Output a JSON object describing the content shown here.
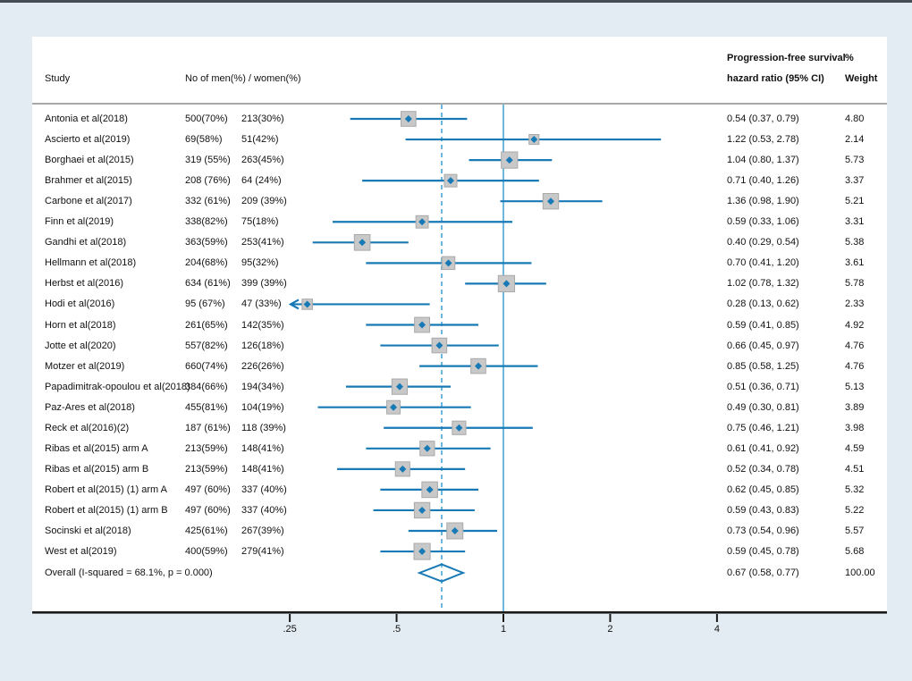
{
  "header": {
    "col_study": "Study",
    "col_counts": "No of men(%) / women(%)",
    "col_hr_line1": "Progression-free survival",
    "col_hr_line2": "hazard ratio (95% CI)",
    "col_weight_line1": "%",
    "col_weight_line2": "Weight"
  },
  "colors": {
    "accent_blue": "#1779b5",
    "ref_line_blue": "#4aa5d6",
    "box_fill": "#c8c8c8",
    "box_stroke": "#a9a9a9",
    "axis_black": "#1a1a1a",
    "header_rule_gray": "#a8a8a8",
    "outer_bg": "#e3ecf2",
    "panel_bg": "#ffffff",
    "text": "#111111"
  },
  "chart_data": {
    "type": "scatter",
    "subtype": "forest_plot",
    "title": "",
    "x_axis": {
      "scale": "log",
      "ticks": [
        0.25,
        0.5,
        1,
        2,
        4
      ],
      "tick_labels": [
        ".25",
        ".5",
        "1",
        "2",
        "4"
      ],
      "reference_line": 1,
      "overall_dashed_line": 0.67,
      "legend_position": "none",
      "grid": false
    },
    "studies": [
      {
        "label": "Antonia et al(2018)",
        "men": "500(70%)",
        "women": "213(30%)",
        "hr": 0.54,
        "lo": 0.37,
        "hi": 0.79,
        "hr_text": "0.54 (0.37, 0.79)",
        "weight": 4.8,
        "weight_text": "4.80"
      },
      {
        "label": "Ascierto et al(2019)",
        "men": "69(58%)",
        "women": "51(42%)",
        "hr": 1.22,
        "lo": 0.53,
        "hi": 2.78,
        "hr_text": "1.22 (0.53, 2.78)",
        "weight": 2.14,
        "weight_text": "2.14"
      },
      {
        "label": "Borghaei et al(2015)",
        "men": "319 (55%)",
        "women": "263(45%)",
        "hr": 1.04,
        "lo": 0.8,
        "hi": 1.37,
        "hr_text": "1.04 (0.80, 1.37)",
        "weight": 5.73,
        "weight_text": "5.73"
      },
      {
        "label": "Brahmer et al(2015)",
        "men": "208 (76%)",
        "women": "64 (24%)",
        "hr": 0.71,
        "lo": 0.4,
        "hi": 1.26,
        "hr_text": "0.71 (0.40, 1.26)",
        "weight": 3.37,
        "weight_text": "3.37"
      },
      {
        "label": "Carbone et al(2017)",
        "men": "332 (61%)",
        "women": "209 (39%)",
        "hr": 1.36,
        "lo": 0.98,
        "hi": 1.9,
        "hr_text": "1.36 (0.98, 1.90)",
        "weight": 5.21,
        "weight_text": "5.21"
      },
      {
        "label": "Finn et al(2019)",
        "men": "338(82%)",
        "women": "75(18%)",
        "hr": 0.59,
        "lo": 0.33,
        "hi": 1.06,
        "hr_text": "0.59 (0.33, 1.06)",
        "weight": 3.31,
        "weight_text": "3.31"
      },
      {
        "label": "Gandhi et al(2018)",
        "men": "363(59%)",
        "women": "253(41%)",
        "hr": 0.4,
        "lo": 0.29,
        "hi": 0.54,
        "hr_text": "0.40 (0.29, 0.54)",
        "weight": 5.38,
        "weight_text": "5.38"
      },
      {
        "label": "Hellmann et al(2018)",
        "men": "204(68%)",
        "women": "95(32%)",
        "hr": 0.7,
        "lo": 0.41,
        "hi": 1.2,
        "hr_text": "0.70 (0.41, 1.20)",
        "weight": 3.61,
        "weight_text": "3.61"
      },
      {
        "label": "Herbst et al(2016)",
        "men": "634 (61%)",
        "women": "399 (39%)",
        "hr": 1.02,
        "lo": 0.78,
        "hi": 1.32,
        "hr_text": "1.02 (0.78, 1.32)",
        "weight": 5.78,
        "weight_text": "5.78"
      },
      {
        "label": "Hodi et al(2016)",
        "men": "95 (67%)",
        "women": "47 (33%)",
        "hr": 0.28,
        "lo": 0.13,
        "hi": 0.62,
        "hr_text": "0.28 (0.13, 0.62)",
        "weight": 2.33,
        "weight_text": "2.33"
      },
      {
        "label": "Horn et al(2018)",
        "men": "261(65%)",
        "women": "142(35%)",
        "hr": 0.59,
        "lo": 0.41,
        "hi": 0.85,
        "hr_text": "0.59 (0.41, 0.85)",
        "weight": 4.92,
        "weight_text": "4.92"
      },
      {
        "label": "Jotte et al(2020)",
        "men": "557(82%)",
        "women": "126(18%)",
        "hr": 0.66,
        "lo": 0.45,
        "hi": 0.97,
        "hr_text": "0.66 (0.45, 0.97)",
        "weight": 4.76,
        "weight_text": "4.76"
      },
      {
        "label": "Motzer et al(2019)",
        "men": "660(74%)",
        "women": "226(26%)",
        "hr": 0.85,
        "lo": 0.58,
        "hi": 1.25,
        "hr_text": "0.85 (0.58, 1.25)",
        "weight": 4.76,
        "weight_text": "4.76"
      },
      {
        "label": "Papadimitrak-opoulou et al(2018)",
        "men": "384(66%)",
        "women": "194(34%)",
        "hr": 0.51,
        "lo": 0.36,
        "hi": 0.71,
        "hr_text": "0.51 (0.36, 0.71)",
        "weight": 5.13,
        "weight_text": "5.13"
      },
      {
        "label": "Paz-Ares et al(2018)",
        "men": "455(81%)",
        "women": "104(19%)",
        "hr": 0.49,
        "lo": 0.3,
        "hi": 0.81,
        "hr_text": "0.49 (0.30, 0.81)",
        "weight": 3.89,
        "weight_text": "3.89"
      },
      {
        "label": "Reck et al(2016)(2)",
        "men": "187 (61%)",
        "women": "118 (39%)",
        "hr": 0.75,
        "lo": 0.46,
        "hi": 1.21,
        "hr_text": "0.75 (0.46, 1.21)",
        "weight": 3.98,
        "weight_text": "3.98"
      },
      {
        "label": "Ribas et al(2015) arm A",
        "men": "213(59%)",
        "women": "148(41%)",
        "hr": 0.61,
        "lo": 0.41,
        "hi": 0.92,
        "hr_text": "0.61 (0.41, 0.92)",
        "weight": 4.59,
        "weight_text": "4.59"
      },
      {
        "label": "Ribas et al(2015) arm B",
        "men": "213(59%)",
        "women": "148(41%)",
        "hr": 0.52,
        "lo": 0.34,
        "hi": 0.78,
        "hr_text": "0.52 (0.34, 0.78)",
        "weight": 4.51,
        "weight_text": "4.51"
      },
      {
        "label": "Robert et al(2015) (1) arm A",
        "men": "497 (60%)",
        "women": "337 (40%)",
        "hr": 0.62,
        "lo": 0.45,
        "hi": 0.85,
        "hr_text": "0.62 (0.45, 0.85)",
        "weight": 5.32,
        "weight_text": "5.32"
      },
      {
        "label": "Robert et al(2015) (1) arm B",
        "men": "497 (60%)",
        "women": "337 (40%)",
        "hr": 0.59,
        "lo": 0.43,
        "hi": 0.83,
        "hr_text": "0.59 (0.43, 0.83)",
        "weight": 5.22,
        "weight_text": "5.22"
      },
      {
        "label": "Socinski et al(2018)",
        "men": "425(61%)",
        "women": "267(39%)",
        "hr": 0.73,
        "lo": 0.54,
        "hi": 0.96,
        "hr_text": "0.73 (0.54, 0.96)",
        "weight": 5.57,
        "weight_text": "5.57"
      },
      {
        "label": "West et al(2019)",
        "men": "400(59%)",
        "women": "279(41%)",
        "hr": 0.59,
        "lo": 0.45,
        "hi": 0.78,
        "hr_text": "0.59 (0.45, 0.78)",
        "weight": 5.68,
        "weight_text": "5.68"
      }
    ],
    "overall": {
      "label": "Overall  (I-squared = 68.1%, p = 0.000)",
      "hr": 0.67,
      "lo": 0.58,
      "hi": 0.77,
      "hr_text": "0.67 (0.58, 0.77)",
      "weight_text": "100.00"
    }
  }
}
